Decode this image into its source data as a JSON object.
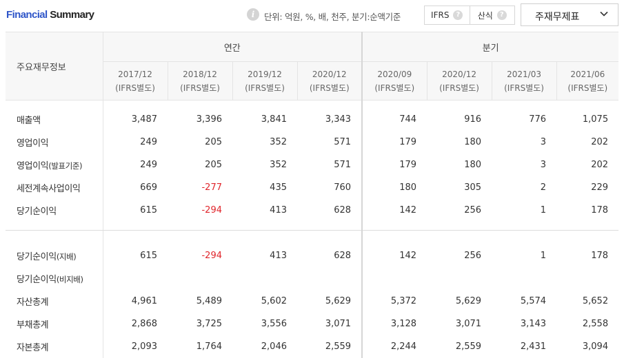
{
  "header": {
    "title_part1": "Financial",
    "title_part2": "Summary",
    "info_icon_glyph": "i",
    "unit_text": "단위: 억원, %, 배, 천주, 분기:순액기준",
    "toggle": [
      {
        "label": "IFRS",
        "help_icon": "?"
      },
      {
        "label": "산식",
        "help_icon": "?"
      }
    ],
    "dropdown_label": "주재무제표"
  },
  "table": {
    "corner_label": "주요재무정보",
    "group_annual": "연간",
    "group_quarter": "분기",
    "periods": [
      {
        "period": "2017/12",
        "basis": "(IFRS별도)"
      },
      {
        "period": "2018/12",
        "basis": "(IFRS별도)"
      },
      {
        "period": "2019/12",
        "basis": "(IFRS별도)"
      },
      {
        "period": "2020/12",
        "basis": "(IFRS별도)"
      },
      {
        "period": "2020/09",
        "basis": "(IFRS별도)"
      },
      {
        "period": "2020/12",
        "basis": "(IFRS별도)"
      },
      {
        "period": "2021/03",
        "basis": "(IFRS별도)"
      },
      {
        "period": "2021/06",
        "basis": "(IFRS별도)"
      }
    ],
    "section1": [
      {
        "label": "매출액",
        "sub": "",
        "values": [
          "3,487",
          "3,396",
          "3,841",
          "3,343",
          "744",
          "916",
          "776",
          "1,075"
        ]
      },
      {
        "label": "영업이익",
        "sub": "",
        "values": [
          "249",
          "205",
          "352",
          "571",
          "179",
          "180",
          "3",
          "202"
        ]
      },
      {
        "label": "영업이익",
        "sub": "(발표기준)",
        "values": [
          "249",
          "205",
          "352",
          "571",
          "179",
          "180",
          "3",
          "202"
        ]
      },
      {
        "label": "세전계속사업이익",
        "sub": "",
        "values": [
          "669",
          "-277",
          "435",
          "760",
          "180",
          "305",
          "2",
          "229"
        ]
      },
      {
        "label": "당기순이익",
        "sub": "",
        "values": [
          "615",
          "-294",
          "413",
          "628",
          "142",
          "256",
          "1",
          "178"
        ]
      }
    ],
    "section2": [
      {
        "label": "당기순이익",
        "sub": "(지배)",
        "values": [
          "615",
          "-294",
          "413",
          "628",
          "142",
          "256",
          "1",
          "178"
        ]
      },
      {
        "label": "당기순이익",
        "sub": "(비지배)",
        "values": [
          "",
          "",
          "",
          "",
          "",
          "",
          "",
          ""
        ]
      },
      {
        "label": "자산총계",
        "sub": "",
        "values": [
          "4,961",
          "5,489",
          "5,602",
          "5,629",
          "5,372",
          "5,629",
          "5,574",
          "5,652"
        ]
      },
      {
        "label": "부채총계",
        "sub": "",
        "values": [
          "2,868",
          "3,725",
          "3,556",
          "3,071",
          "3,128",
          "3,071",
          "3,143",
          "2,558"
        ]
      },
      {
        "label": "자본총계",
        "sub": "",
        "values": [
          "2,093",
          "1,764",
          "2,046",
          "2,559",
          "2,244",
          "2,559",
          "2,431",
          "3,094"
        ]
      }
    ]
  },
  "colors": {
    "accent": "#2f56c9",
    "negative": "#e0252b"
  }
}
